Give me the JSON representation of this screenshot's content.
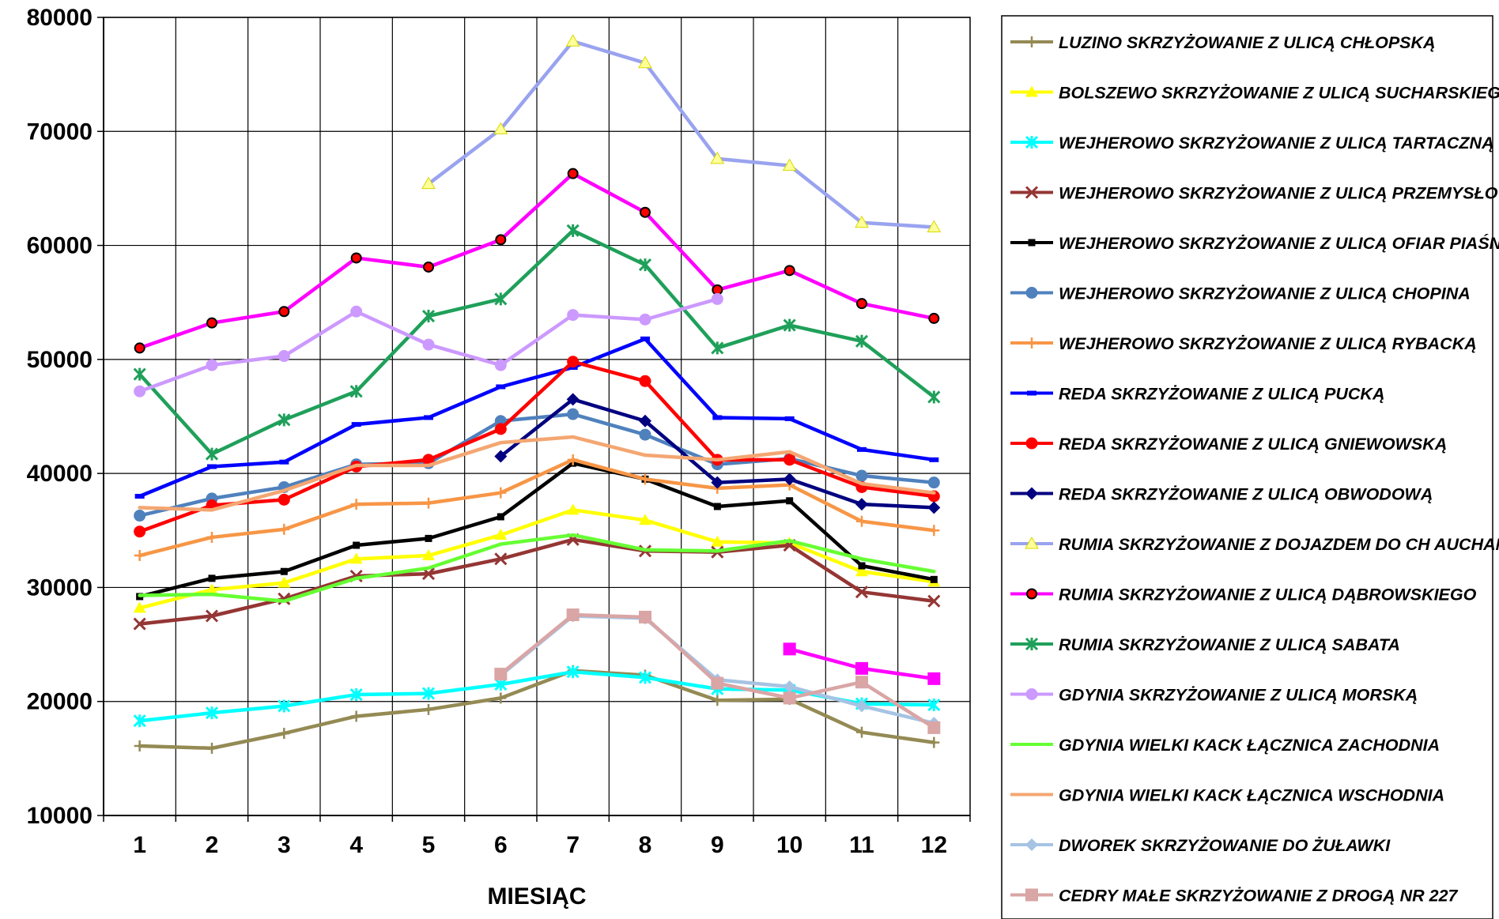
{
  "chart_data": {
    "type": "line",
    "title": "",
    "xlabel": "MIESIĄC",
    "ylabel": "",
    "categories": [
      "1",
      "2",
      "3",
      "4",
      "5",
      "6",
      "7",
      "8",
      "9",
      "10",
      "11",
      "12"
    ],
    "ylim": [
      10000,
      80000
    ],
    "yticks": [
      10000,
      20000,
      30000,
      40000,
      50000,
      60000,
      70000,
      80000
    ],
    "grid": true,
    "legend_position": "right",
    "series": [
      {
        "name": "LUZINO SKRZYŻOWANIE Z ULICĄ CHŁOPSKĄ",
        "color": "#948a54",
        "marker": "plus",
        "values": [
          16100,
          15900,
          17200,
          18700,
          19300,
          20300,
          22700,
          22300,
          20100,
          20200,
          17300,
          16400
        ]
      },
      {
        "name": "BOLSZEWO SKRZYŻOWANIE Z ULICĄ SUCHARSKIEGO",
        "color": "#ffff00",
        "marker": "triangle",
        "values": [
          28200,
          29800,
          30400,
          32500,
          32800,
          34600,
          36800,
          35900,
          34000,
          33900,
          31400,
          30500
        ]
      },
      {
        "name": "WEJHEROWO SKRZYŻOWANIE Z ULICĄ TARTACZNĄ",
        "color": "#00ffff",
        "marker": "asterisk",
        "values": [
          18300,
          19000,
          19600,
          20600,
          20700,
          21500,
          22600,
          22100,
          21100,
          21000,
          19800,
          19700
        ]
      },
      {
        "name": "WEJHEROWO SKRZYŻOWANIE Z ULICĄ PRZEMYSŁOWĄ",
        "color": "#943634",
        "marker": "x",
        "values": [
          26800,
          27500,
          29000,
          31000,
          31200,
          32500,
          34200,
          33200,
          33100,
          33700,
          29600,
          28800
        ]
      },
      {
        "name": "WEJHEROWO SKRZYŻOWANIE Z ULICĄ OFIAR PIAŚNICY",
        "color": "#000000",
        "marker": "square-small",
        "values": [
          29200,
          30800,
          31400,
          33700,
          34300,
          36200,
          40900,
          39500,
          37100,
          37600,
          31900,
          30700
        ]
      },
      {
        "name": "WEJHEROWO SKRZYŻOWANIE Z ULICĄ CHOPINA",
        "color": "#4f81bd",
        "marker": "circle",
        "values": [
          36300,
          37800,
          38800,
          40800,
          40900,
          44600,
          45200,
          43400,
          40800,
          41300,
          39800,
          39200
        ]
      },
      {
        "name": "WEJHEROWO SKRZYŻOWANIE Z ULICĄ RYBACKĄ",
        "color": "#f79646",
        "marker": "plus",
        "values": [
          32800,
          34400,
          35100,
          37300,
          37400,
          38300,
          41200,
          39500,
          38700,
          39000,
          35800,
          35000
        ]
      },
      {
        "name": "REDA SKRZYŻOWANIE Z ULICĄ PUCKĄ",
        "color": "#0000ff",
        "marker": "dash",
        "values": [
          38000,
          40600,
          41000,
          44300,
          44900,
          47600,
          49300,
          51800,
          44900,
          44800,
          42100,
          41200
        ]
      },
      {
        "name": "REDA SKRZYŻOWANIE Z ULICĄ GNIEWOWSKĄ",
        "color": "#ff0000",
        "marker": "circle",
        "values": [
          34900,
          37200,
          37700,
          40600,
          41200,
          43900,
          49800,
          48100,
          41200,
          41200,
          38800,
          38000
        ]
      },
      {
        "name": "REDA SKRZYŻOWANIE Z ULICĄ OBWODOWĄ",
        "color": "#000080",
        "marker": "diamond",
        "values": [
          null,
          null,
          null,
          null,
          null,
          41500,
          46500,
          44600,
          39200,
          39500,
          37300,
          37000
        ]
      },
      {
        "name": "RUMIA SKRZYŻOWANIE Z DOJAZDEM DO CH AUCHAN",
        "color": "#99a3ef",
        "marker": "triangle-yellow",
        "values": [
          null,
          null,
          null,
          null,
          65400,
          70200,
          77900,
          76000,
          67600,
          67000,
          62000,
          61600
        ]
      },
      {
        "name": "RUMIA SKRZYŻOWANIE Z ULICĄ DĄBROWSKIEGO",
        "color": "#ff00ff",
        "marker": "circle-red",
        "values": [
          51000,
          53200,
          54200,
          58900,
          58100,
          60500,
          66300,
          62900,
          56100,
          57800,
          54900,
          53600
        ]
      },
      {
        "name": "RUMIA SKRZYŻOWANIE Z ULICĄ SABATA",
        "color": "#1fa05a",
        "marker": "asterisk",
        "values": [
          48700,
          41700,
          44700,
          47200,
          53800,
          55300,
          61300,
          58300,
          51000,
          53000,
          51600,
          46700
        ]
      },
      {
        "name": "GDYNIA SKRZYŻOWANIE Z ULICĄ MORSKĄ",
        "color": "#cc99ff",
        "marker": "circle",
        "values": [
          47200,
          49500,
          50300,
          54200,
          51300,
          49500,
          53900,
          53500,
          55300,
          null,
          null,
          null
        ]
      },
      {
        "name": "GDYNIA WIELKI KACK ŁĄCZNICA ZACHODNIA",
        "color": "#66ff33",
        "marker": "none",
        "values": [
          29300,
          29400,
          28800,
          30800,
          31700,
          33800,
          34600,
          33300,
          33200,
          34100,
          32500,
          31400
        ]
      },
      {
        "name": "GDYNIA WIELKI KACK ŁĄCZNICA WSCHODNIA",
        "color": "#f4a672",
        "marker": "none",
        "values": [
          37000,
          36800,
          38500,
          40700,
          40700,
          42700,
          43200,
          41600,
          41200,
          41900,
          39100,
          38300
        ]
      },
      {
        "name": "DWOREK SKRZYŻOWANIE DO ŻUŁAWKI",
        "color": "#a6c3e3",
        "marker": "diamond",
        "values": [
          null,
          null,
          null,
          null,
          null,
          22300,
          27500,
          27300,
          21900,
          21300,
          19600,
          18100
        ]
      },
      {
        "name": "CEDRY MAŁE SKRZYŻOWANIE Z DROGĄ NR 227",
        "color": "#d9a5a5",
        "marker": "square",
        "values": [
          null,
          null,
          null,
          null,
          null,
          22400,
          27600,
          27400,
          21600,
          20300,
          21700,
          17700
        ]
      },
      {
        "name": "",
        "color": "#ff00ff",
        "marker": "square",
        "values": [
          null,
          null,
          null,
          null,
          null,
          null,
          null,
          null,
          null,
          24600,
          22900,
          22000
        ]
      }
    ]
  }
}
